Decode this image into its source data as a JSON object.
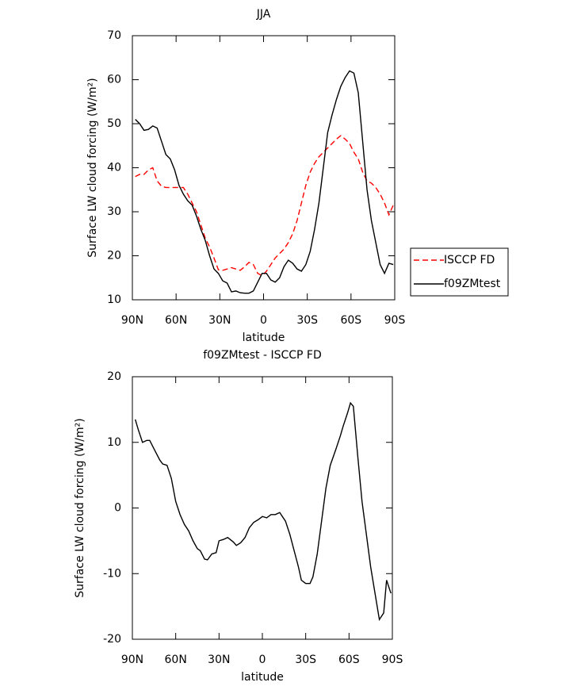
{
  "chart_data": [
    {
      "type": "line",
      "title": "JJA",
      "xlabel": "latitude",
      "ylabel": "Surface LW cloud forcing (W/m²)",
      "x": [
        88,
        85,
        82,
        79,
        76,
        73,
        70,
        67,
        64,
        61,
        58,
        55,
        52,
        49,
        46,
        43,
        40,
        37,
        34,
        31,
        28,
        25,
        22,
        19,
        16,
        13,
        10,
        7,
        4,
        1,
        -2,
        -5,
        -8,
        -11,
        -14,
        -17,
        -20,
        -23,
        -26,
        -29,
        -32,
        -35,
        -38,
        -41,
        -44,
        -47,
        -50,
        -53,
        -56,
        -59,
        -62,
        -65,
        -68,
        -71,
        -74,
        -77,
        -80,
        -83,
        -86,
        -89
      ],
      "series": [
        {
          "name": "ISCCP FD",
          "color": "#ff0000",
          "dashed": true,
          "values": [
            38,
            38.5,
            38.5,
            39.5,
            40,
            37,
            35.8,
            35.5,
            35.5,
            35.5,
            35.5,
            35.5,
            34,
            32,
            30,
            27,
            24,
            22,
            19.5,
            16.8,
            16.7,
            17,
            17.3,
            17,
            16.7,
            17.5,
            18.5,
            18,
            16,
            15.5,
            16.5,
            18,
            19.5,
            20.5,
            21.5,
            23,
            25,
            28,
            32,
            36,
            39,
            41,
            42.5,
            43.5,
            44.5,
            45.5,
            46.5,
            47.3,
            46.5,
            45.5,
            43.5,
            42,
            39,
            37,
            36.5,
            35.5,
            34,
            32,
            29.3,
            31.5
          ]
        },
        {
          "name": "f09ZMtest",
          "color": "#000000",
          "dashed": false,
          "values": [
            51,
            50,
            48.5,
            48.7,
            49.5,
            49,
            46,
            43,
            42,
            39.5,
            36,
            34,
            32.5,
            31.5,
            29,
            26,
            23.5,
            20,
            17,
            16,
            14.3,
            13.8,
            11.8,
            12,
            11.6,
            11.5,
            11.5,
            12,
            14,
            16,
            16,
            14.5,
            14,
            15,
            17.5,
            19,
            18.3,
            17,
            16.5,
            18,
            21,
            26,
            32,
            40,
            48,
            52,
            55.5,
            58.5,
            60.5,
            62,
            61.5,
            57,
            46,
            35,
            28,
            23,
            18,
            16,
            18.3,
            18
          ]
        }
      ],
      "xlim": [
        90,
        -90
      ],
      "xticks": [
        {
          "value": 90,
          "label": "90N"
        },
        {
          "value": 60,
          "label": "60N"
        },
        {
          "value": 30,
          "label": "30N"
        },
        0,
        {
          "value": -30,
          "label": "30S"
        },
        {
          "value": -60,
          "label": "60S"
        },
        {
          "value": -90,
          "label": "90S"
        }
      ],
      "ylim": [
        10,
        70
      ],
      "yticks": [
        10,
        20,
        30,
        40,
        50,
        60,
        70
      ],
      "legend": "right"
    },
    {
      "type": "line",
      "title": "f09ZMtest - ISCCP FD",
      "xlabel": "latitude",
      "ylabel": "Surface LW cloud forcing (W/m²)",
      "x": [
        88,
        86,
        83,
        80,
        78,
        75,
        71,
        69,
        66,
        63,
        60,
        57,
        54,
        51,
        48,
        45,
        43,
        40,
        38,
        35,
        32,
        30,
        27,
        24,
        20,
        18,
        15,
        12,
        9,
        6,
        3,
        0,
        -3,
        -6,
        -9,
        -12,
        -16,
        -19,
        -22,
        -25,
        -27,
        -30,
        -33,
        -35,
        -38,
        -41,
        -44,
        -47,
        -51,
        -54,
        -56,
        -59,
        -61,
        -63,
        -66,
        -69,
        -72,
        -75,
        -78,
        -81,
        -84,
        -86,
        -89
      ],
      "values": [
        13.5,
        12,
        10,
        10.3,
        10.3,
        9,
        7.3,
        6.7,
        6.5,
        4.5,
        1,
        -1,
        -2.5,
        -3.5,
        -5,
        -6.2,
        -6.5,
        -7.8,
        -7.9,
        -7,
        -6.8,
        -5,
        -4.8,
        -4.5,
        -5.2,
        -5.7,
        -5.3,
        -4.5,
        -3,
        -2.2,
        -1.8,
        -1.3,
        -1.5,
        -1,
        -1,
        -0.7,
        -2,
        -4,
        -6.5,
        -9,
        -11,
        -11.5,
        -11.5,
        -10.5,
        -7,
        -2,
        3,
        6.5,
        9,
        11,
        12.5,
        14.5,
        16,
        15.5,
        8,
        1,
        -4,
        -9,
        -13,
        -17,
        -16,
        -11,
        -13
      ],
      "color": "#000000",
      "xlim": [
        90,
        -90
      ],
      "xticks": [
        {
          "value": 90,
          "label": "90N"
        },
        {
          "value": 60,
          "label": "60N"
        },
        {
          "value": 30,
          "label": "30N"
        },
        0,
        {
          "value": -30,
          "label": "30S"
        },
        {
          "value": -60,
          "label": "60S"
        },
        {
          "value": -90,
          "label": "90S"
        }
      ],
      "ylim": [
        -20,
        20
      ],
      "yticks": [
        -20,
        -10,
        0,
        10,
        20
      ]
    }
  ]
}
